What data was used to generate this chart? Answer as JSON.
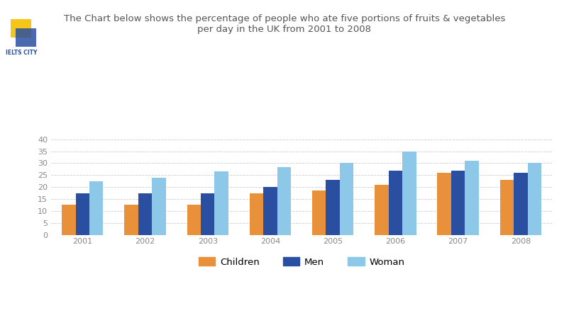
{
  "title_line1": "The Chart below shows the percentage of people who ate five portions of fruits & vegetables",
  "title_line2": "per day in the UK from 2001 to 2008",
  "years": [
    "2001",
    "2002",
    "2003",
    "2004",
    "2005",
    "2006",
    "2007",
    "2008"
  ],
  "children": [
    12.5,
    12.5,
    12.5,
    17.5,
    18.5,
    21,
    26,
    23
  ],
  "men": [
    17.5,
    17.5,
    17.5,
    20,
    23,
    27,
    27,
    26
  ],
  "women": [
    22.5,
    24,
    26.5,
    28.5,
    30,
    35,
    31,
    30
  ],
  "children_color": "#E8913A",
  "men_color": "#2B4FA0",
  "women_color": "#8EC8E8",
  "background_color": "#FFFFFF",
  "ylim": [
    0,
    42
  ],
  "yticks": [
    0,
    5,
    10,
    15,
    20,
    25,
    30,
    35,
    40
  ],
  "grid_color": "#CCCCCC",
  "bar_width": 0.22,
  "legend_labels": [
    "Children",
    "Men",
    "Woman"
  ]
}
